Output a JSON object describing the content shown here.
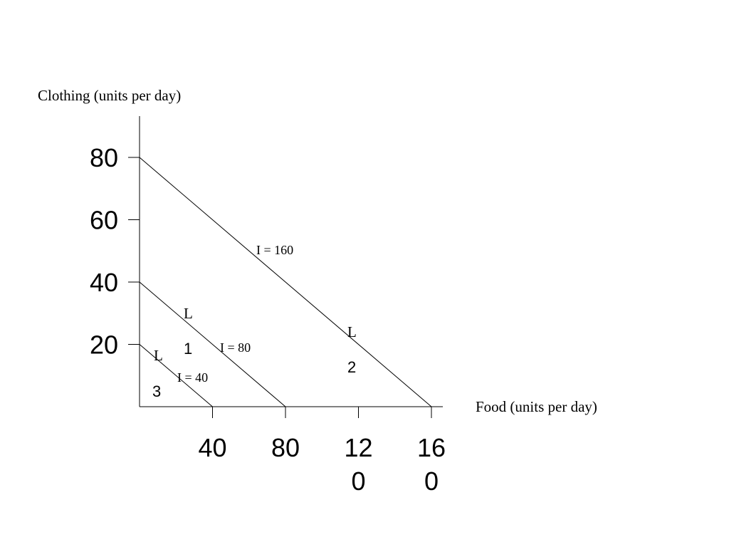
{
  "chart_data": {
    "type": "line",
    "xlabel": "Food (units per day)",
    "ylabel": "Clothing (units per day)",
    "x_ticks": [
      {
        "value": 40,
        "lines": [
          "40"
        ]
      },
      {
        "value": 80,
        "lines": [
          "80"
        ]
      },
      {
        "value": 120,
        "lines": [
          "12",
          "0"
        ]
      },
      {
        "value": 160,
        "lines": [
          "16",
          "0"
        ]
      }
    ],
    "y_ticks": [
      {
        "value": 20,
        "lines": [
          "20"
        ]
      },
      {
        "value": 40,
        "lines": [
          "40"
        ]
      },
      {
        "value": 60,
        "lines": [
          "60"
        ]
      },
      {
        "value": 80,
        "lines": [
          "80"
        ]
      }
    ],
    "series": [
      {
        "line_letter": "L",
        "line_number": "3",
        "income_label": "I = 40",
        "x": [
          0,
          40
        ],
        "y": [
          20,
          0
        ]
      },
      {
        "line_letter": "L",
        "line_number": "1",
        "income_label": "I = 80",
        "x": [
          0,
          80
        ],
        "y": [
          40,
          0
        ]
      },
      {
        "line_letter": "L",
        "line_number": "2",
        "income_label": "I = 160",
        "x": [
          0,
          160
        ],
        "y": [
          80,
          0
        ]
      }
    ],
    "grid": false,
    "legend": "none"
  }
}
